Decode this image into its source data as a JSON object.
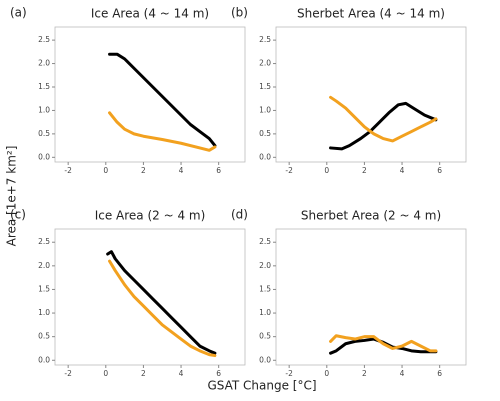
{
  "ylabel": "Area  [1e+7 km²]",
  "xlabel": "GSAT Change [°C]",
  "chart_data": [
    {
      "type": "line",
      "label": "(a)",
      "title": "Ice Area (4 ~ 14 m)",
      "xlim": [
        -2.7,
        7.4
      ],
      "ylim": [
        -0.1,
        2.78
      ],
      "xticks": [
        -2,
        0,
        2,
        4,
        6
      ],
      "yticks": [
        {
          "value": 0,
          "label": "0.0"
        },
        {
          "value": 0.5,
          "label": "0.5"
        },
        {
          "value": 1,
          "label": "1.0"
        },
        {
          "value": 1.5,
          "label": "1.5"
        },
        {
          "value": 2,
          "label": "2.0"
        },
        {
          "value": 2.5,
          "label": "2.5"
        }
      ],
      "series": [
        {
          "color": "#000000",
          "x": [
            0.2,
            0.6,
            1,
            1.5,
            2,
            2.5,
            3,
            3.5,
            4,
            4.5,
            5,
            5.5,
            5.8
          ],
          "values": [
            2.2,
            2.2,
            2.1,
            1.9,
            1.7,
            1.5,
            1.3,
            1.1,
            0.9,
            0.7,
            0.55,
            0.4,
            0.25
          ]
        },
        {
          "color": "#f2a11f",
          "x": [
            0.2,
            0.6,
            1,
            1.5,
            2,
            3,
            4,
            5,
            5.5,
            5.8
          ],
          "values": [
            0.95,
            0.75,
            0.6,
            0.5,
            0.45,
            0.38,
            0.3,
            0.2,
            0.15,
            0.22
          ]
        }
      ]
    },
    {
      "type": "line",
      "label": "(b)",
      "title": "Sherbet Area (4 ~ 14 m)",
      "xlim": [
        -2.7,
        7.4
      ],
      "ylim": [
        -0.1,
        2.78
      ],
      "xticks": [
        -2,
        0,
        2,
        4,
        6
      ],
      "yticks": [
        {
          "value": 0,
          "label": "0.0"
        },
        {
          "value": 0.5,
          "label": "0.5"
        },
        {
          "value": 1,
          "label": "1.0"
        },
        {
          "value": 1.5,
          "label": "1.5"
        },
        {
          "value": 2,
          "label": "2.0"
        },
        {
          "value": 2.5,
          "label": "2.5"
        }
      ],
      "series": [
        {
          "color": "#000000",
          "x": [
            0.2,
            0.8,
            1.2,
            1.8,
            2.3,
            2.8,
            3.3,
            3.8,
            4.2,
            4.6,
            5.2,
            5.8
          ],
          "values": [
            0.2,
            0.18,
            0.25,
            0.4,
            0.55,
            0.75,
            0.95,
            1.12,
            1.15,
            1.05,
            0.9,
            0.8
          ]
        },
        {
          "color": "#f2a11f",
          "x": [
            0.2,
            0.5,
            1,
            1.5,
            2,
            2.5,
            3,
            3.5,
            4,
            4.5,
            5,
            5.5,
            5.8
          ],
          "values": [
            1.28,
            1.2,
            1.05,
            0.85,
            0.65,
            0.5,
            0.4,
            0.35,
            0.45,
            0.55,
            0.65,
            0.75,
            0.82
          ]
        }
      ]
    },
    {
      "type": "line",
      "label": "(c)",
      "title": "Ice Area (2 ~ 4 m)",
      "xlim": [
        -2.7,
        7.4
      ],
      "ylim": [
        -0.1,
        2.78
      ],
      "xticks": [
        -2,
        0,
        2,
        4,
        6
      ],
      "yticks": [
        {
          "value": 0,
          "label": "0.0"
        },
        {
          "value": 0.5,
          "label": "0.5"
        },
        {
          "value": 1,
          "label": "1.0"
        },
        {
          "value": 1.5,
          "label": "1.5"
        },
        {
          "value": 2,
          "label": "2.0"
        },
        {
          "value": 2.5,
          "label": "2.5"
        }
      ],
      "series": [
        {
          "color": "#000000",
          "x": [
            0.1,
            0.3,
            0.5,
            1,
            1.5,
            2,
            2.5,
            3,
            3.5,
            4,
            4.5,
            5,
            5.5,
            5.8
          ],
          "values": [
            2.25,
            2.3,
            2.15,
            1.9,
            1.7,
            1.5,
            1.3,
            1.1,
            0.9,
            0.7,
            0.5,
            0.3,
            0.2,
            0.15
          ]
        },
        {
          "color": "#f2a11f",
          "x": [
            0.2,
            0.5,
            1,
            1.5,
            2,
            2.5,
            3,
            3.5,
            4,
            4.5,
            5,
            5.5,
            5.8
          ],
          "values": [
            2.1,
            1.9,
            1.6,
            1.35,
            1.15,
            0.95,
            0.75,
            0.6,
            0.45,
            0.3,
            0.2,
            0.12,
            0.1
          ]
        }
      ]
    },
    {
      "type": "line",
      "label": "(d)",
      "title": "Sherbet Area (2 ~ 4 m)",
      "xlim": [
        -2.7,
        7.4
      ],
      "ylim": [
        -0.1,
        2.78
      ],
      "xticks": [
        -2,
        0,
        2,
        4,
        6
      ],
      "yticks": [
        {
          "value": 0,
          "label": "0.0"
        },
        {
          "value": 0.5,
          "label": "0.5"
        },
        {
          "value": 1,
          "label": "1.0"
        },
        {
          "value": 1.5,
          "label": "1.5"
        },
        {
          "value": 2,
          "label": "2.0"
        },
        {
          "value": 2.5,
          "label": "2.5"
        }
      ],
      "series": [
        {
          "color": "#000000",
          "x": [
            0.2,
            0.5,
            1,
            1.5,
            2,
            2.5,
            3,
            3.5,
            4,
            4.5,
            5,
            5.8
          ],
          "values": [
            0.15,
            0.2,
            0.35,
            0.4,
            0.42,
            0.45,
            0.38,
            0.28,
            0.25,
            0.2,
            0.18,
            0.18
          ]
        },
        {
          "color": "#f2a11f",
          "x": [
            0.2,
            0.5,
            1,
            1.5,
            2,
            2.5,
            3,
            3.5,
            4,
            4.5,
            5,
            5.5,
            5.8
          ],
          "values": [
            0.4,
            0.52,
            0.48,
            0.45,
            0.5,
            0.5,
            0.35,
            0.25,
            0.3,
            0.4,
            0.3,
            0.2,
            0.2
          ]
        }
      ]
    }
  ]
}
